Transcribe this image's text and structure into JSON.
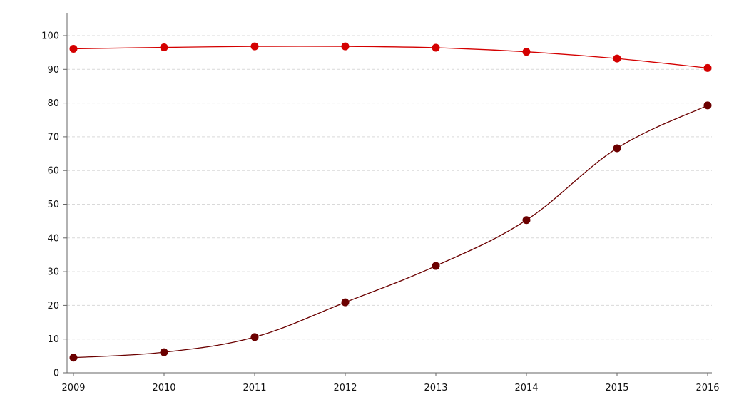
{
  "chart_data": {
    "type": "line",
    "title": "",
    "xlabel": "",
    "ylabel": "",
    "categories": [
      "2009",
      "2010",
      "2011",
      "2012",
      "2013",
      "2014",
      "2015",
      "2016"
    ],
    "ylim": [
      0,
      100
    ],
    "yticks": [
      0,
      10,
      20,
      30,
      40,
      50,
      60,
      70,
      80,
      90,
      100
    ],
    "grid": true,
    "legend": "none",
    "series": [
      {
        "color": "#d40000",
        "values": [
          96.1,
          96.5,
          96.8,
          96.8,
          96.4,
          95.2,
          93.2,
          90.4
        ]
      },
      {
        "color": "#6b0000",
        "values": [
          4.5,
          6.1,
          10.6,
          20.9,
          31.7,
          45.3,
          66.6,
          79.3
        ]
      }
    ]
  }
}
